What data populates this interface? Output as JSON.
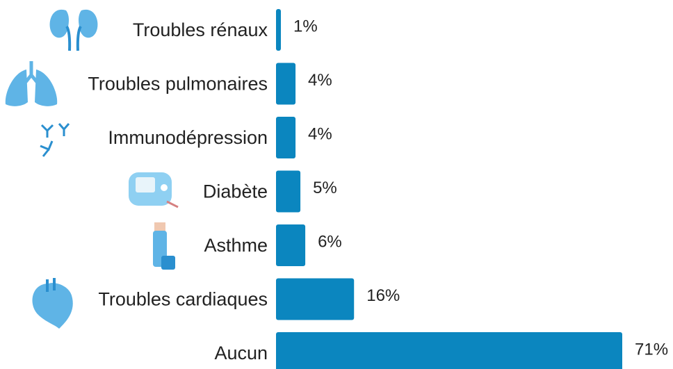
{
  "chart_data": {
    "type": "bar",
    "orientation": "horizontal",
    "categories": [
      "Troubles rénaux",
      "Troubles pulmonaires",
      "Immunodépression",
      "Diabète",
      "Asthme",
      "Troubles cardiaques",
      "Aucun"
    ],
    "values": [
      1,
      4,
      4,
      5,
      6,
      16,
      71
    ],
    "value_labels": [
      "1%",
      "4%",
      "4%",
      "5%",
      "6%",
      "16%",
      "71%"
    ],
    "color": "#0b86bf"
  }
}
